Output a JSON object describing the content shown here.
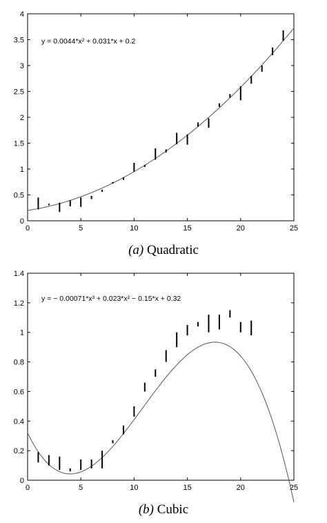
{
  "chart_data": [
    {
      "type": "line",
      "equation": "y = 0.0044*x² + 0.031*x + 0.2",
      "caption_letter": "(a)",
      "caption_text": "Quadratic",
      "xlim": [
        0,
        25
      ],
      "ylim": [
        0,
        4
      ],
      "xticks": [
        0,
        5,
        10,
        15,
        20,
        25
      ],
      "yticks": [
        0,
        0.5,
        1,
        1.5,
        2,
        2.5,
        3,
        3.5,
        4
      ],
      "ytick_labels": [
        "0",
        "0.5",
        "1",
        "1.5",
        "2",
        "2.5",
        "3",
        "3.5",
        "4"
      ],
      "grid": false,
      "fit_coefficients": [
        0.2,
        0.031,
        0.0044
      ],
      "error_bars": [
        {
          "x": 1,
          "low": 0.22,
          "high": 0.45
        },
        {
          "x": 2,
          "low": 0.3,
          "high": 0.33
        },
        {
          "x": 3,
          "low": 0.17,
          "high": 0.35
        },
        {
          "x": 4,
          "low": 0.28,
          "high": 0.4
        },
        {
          "x": 5,
          "low": 0.27,
          "high": 0.45
        },
        {
          "x": 6,
          "low": 0.42,
          "high": 0.48
        },
        {
          "x": 7,
          "low": 0.56,
          "high": 0.6
        },
        {
          "x": 8,
          "low": 0.72,
          "high": 0.75
        },
        {
          "x": 9,
          "low": 0.79,
          "high": 0.84
        },
        {
          "x": 10,
          "low": 0.95,
          "high": 1.12
        },
        {
          "x": 11,
          "low": 1.04,
          "high": 1.08
        },
        {
          "x": 12,
          "low": 1.18,
          "high": 1.4
        },
        {
          "x": 13,
          "low": 1.32,
          "high": 1.38
        },
        {
          "x": 14,
          "low": 1.48,
          "high": 1.7
        },
        {
          "x": 15,
          "low": 1.47,
          "high": 1.67
        },
        {
          "x": 16,
          "low": 1.82,
          "high": 1.9
        },
        {
          "x": 17,
          "low": 1.8,
          "high": 1.98
        },
        {
          "x": 18,
          "low": 2.2,
          "high": 2.27
        },
        {
          "x": 19,
          "low": 2.38,
          "high": 2.45
        },
        {
          "x": 20,
          "low": 2.33,
          "high": 2.6
        },
        {
          "x": 21,
          "low": 2.65,
          "high": 2.8
        },
        {
          "x": 22,
          "low": 2.88,
          "high": 3.0
        },
        {
          "x": 23,
          "low": 3.2,
          "high": 3.35
        },
        {
          "x": 24,
          "low": 3.48,
          "high": 3.68
        }
      ]
    },
    {
      "type": "line",
      "equation": "y = − 0.00071*x³ + 0.023*x² − 0.15*x + 0.32",
      "caption_letter": "(b)",
      "caption_text": "Cubic",
      "xlim": [
        0,
        25
      ],
      "ylim": [
        0,
        1.4
      ],
      "xticks": [
        0,
        5,
        10,
        15,
        20,
        25
      ],
      "yticks": [
        0,
        0.2,
        0.4,
        0.6,
        0.8,
        1,
        1.2,
        1.4
      ],
      "ytick_labels": [
        "0",
        "0.2",
        "0.4",
        "0.6",
        "0.8",
        "1",
        "1.2",
        "1.4"
      ],
      "grid": false,
      "fit_coefficients": [
        0.32,
        -0.15,
        0.023,
        -0.00071
      ],
      "error_bars": [
        {
          "x": 1,
          "low": 0.12,
          "high": 0.19
        },
        {
          "x": 2,
          "low": 0.1,
          "high": 0.17
        },
        {
          "x": 3,
          "low": 0.07,
          "high": 0.16
        },
        {
          "x": 4,
          "low": 0.06,
          "high": 0.08
        },
        {
          "x": 5,
          "low": 0.07,
          "high": 0.14
        },
        {
          "x": 6,
          "low": 0.08,
          "high": 0.14
        },
        {
          "x": 7,
          "low": 0.08,
          "high": 0.2
        },
        {
          "x": 8,
          "low": 0.25,
          "high": 0.27
        },
        {
          "x": 9,
          "low": 0.31,
          "high": 0.37
        },
        {
          "x": 10,
          "low": 0.43,
          "high": 0.5
        },
        {
          "x": 11,
          "low": 0.6,
          "high": 0.66
        },
        {
          "x": 12,
          "low": 0.7,
          "high": 0.75
        },
        {
          "x": 13,
          "low": 0.8,
          "high": 0.88
        },
        {
          "x": 14,
          "low": 0.9,
          "high": 1.0
        },
        {
          "x": 15,
          "low": 0.98,
          "high": 1.05
        },
        {
          "x": 16,
          "low": 1.04,
          "high": 1.07
        },
        {
          "x": 17,
          "low": 1.0,
          "high": 1.12
        },
        {
          "x": 18,
          "low": 1.02,
          "high": 1.12
        },
        {
          "x": 19,
          "low": 1.1,
          "high": 1.15
        },
        {
          "x": 20,
          "low": 1.0,
          "high": 1.07
        },
        {
          "x": 21,
          "low": 0.98,
          "high": 1.08
        }
      ]
    }
  ]
}
